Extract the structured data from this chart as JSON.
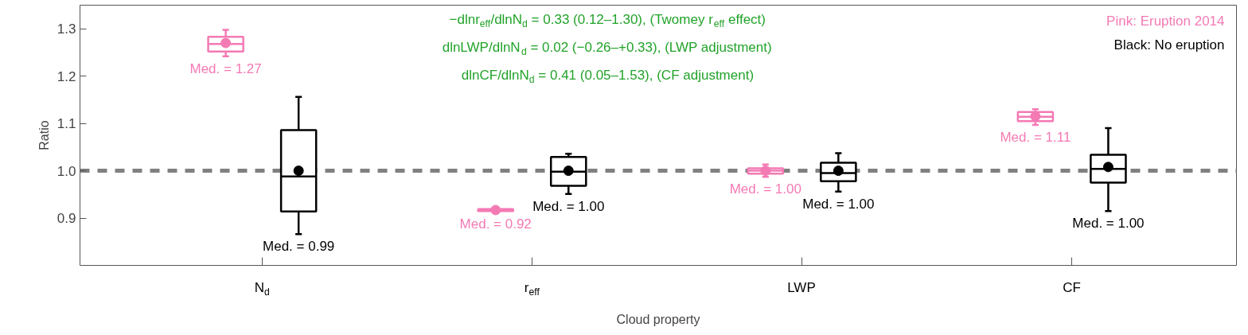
{
  "chart_data": {
    "type": "box",
    "categories": [
      "N$_{d}$",
      "r$_{eff}$",
      "LWP",
      "CF"
    ],
    "xlabel": "Cloud property",
    "ylabel": "Ratio",
    "ylim": [
      0.8,
      1.35
    ],
    "yticks": [
      0.9,
      {
        "value": 1.0,
        "label": "1.0"
      },
      1.1,
      1.2,
      1.3
    ],
    "grid": false,
    "legend": "top right",
    "series": [
      {
        "name": "Pink: Eruption 2014",
        "color": "#f47ab4",
        "value_labels": [
          "Med. = 1.27",
          "Med. = 0.92",
          "Med. = 1.00",
          "Med. = 1.11"
        ],
        "boxes": [
          {
            "low": 1.242,
            "q1": 1.252,
            "median": 1.268,
            "q3": 1.283,
            "high": 1.298,
            "mean": 1.27
          },
          {
            "low": 0.913,
            "q1": 0.915,
            "median": 0.917,
            "q3": 0.919,
            "high": 0.921,
            "mean": 0.917
          },
          {
            "low": 0.987,
            "q1": 0.994,
            "median": 1.0,
            "q3": 1.005,
            "high": 1.013,
            "mean": 1.0
          },
          {
            "low": 1.097,
            "q1": 1.105,
            "median": 1.114,
            "q3": 1.124,
            "high": 1.13,
            "mean": 1.115
          }
        ]
      },
      {
        "name": "Black: No eruption",
        "color": "#000000",
        "value_labels": [
          "Med. = 0.99",
          "Med. = 1.00",
          "Med. = 1.00",
          "Med. = 1.00"
        ],
        "boxes": [
          {
            "low": 0.866,
            "q1": 0.914,
            "median": 0.988,
            "q3": 1.086,
            "high": 1.156,
            "mean": 1.0
          },
          {
            "low": 0.951,
            "q1": 0.968,
            "median": 0.998,
            "q3": 1.029,
            "high": 1.036,
            "mean": 1.0
          },
          {
            "low": 0.956,
            "q1": 0.978,
            "median": 0.995,
            "q3": 1.017,
            "high": 1.037,
            "mean": 1.0
          },
          {
            "low": 0.915,
            "q1": 0.975,
            "median": 1.004,
            "q3": 1.034,
            "high": 1.09,
            "mean": 1.008
          }
        ]
      }
    ],
    "ref_lines": [
      {
        "axis": "y",
        "value": 1.0,
        "color": "#808080",
        "line_style": "dashed"
      }
    ],
    "annotations": [
      "−dlnr$_{eff}$/dlnN$_{d}$ = 0.33 (0.12–1.30), (Twomey r$_{eff}$ effect)",
      "dlnLWP/dlnN$_{d}$ = 0.02 (−0.26–+0.33), (LWP adjustment)",
      "dlnCF/dlnN$_{d}$ = 0.41 (0.05–1.53), (CF adjustment)"
    ]
  }
}
